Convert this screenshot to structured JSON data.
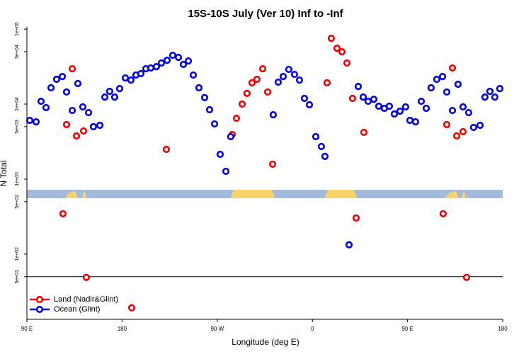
{
  "chart_data": {
    "type": "scatter",
    "title": "15S-10S July (Ver 10)   Inf to -Inf",
    "x_label": "Longitude (deg E)",
    "y_label": "N Total",
    "log_y": true,
    "xlim": [
      90,
      540
    ],
    "ylim": [
      13.5,
      107000
    ],
    "xticks": [
      {
        "value": 90,
        "label": "90 E"
      },
      {
        "value": 180,
        "label": "180"
      },
      {
        "value": 270,
        "label": "90 W"
      },
      {
        "value": 360,
        "label": "0"
      },
      {
        "value": 450,
        "label": "90 E"
      },
      {
        "value": 540,
        "label": "180"
      }
    ],
    "yticks": [
      {
        "value": 100000,
        "label": "1e+05"
      },
      {
        "value": 50000,
        "label": "5e+04"
      },
      {
        "value": 10000,
        "label": "1e+04"
      },
      {
        "value": 5000,
        "label": "5e+03"
      },
      {
        "value": 1000,
        "label": "1e+03"
      },
      {
        "value": 500,
        "label": "5e+02"
      },
      {
        "value": 100,
        "label": "1e+02"
      },
      {
        "value": 50,
        "label": "5e+01"
      }
    ],
    "reference_line": 50,
    "legend": "bottom-left",
    "series": [
      {
        "name": "Land (Nadir&Glint)",
        "color": "#ee0000",
        "x": [
          124.1,
          127.5,
          132.9,
          136.9,
          143.6,
          146.2,
          189.1,
          221.9,
          284.2,
          288.2,
          293.6,
          298.2,
          302.9,
          307.6,
          313.0,
          317.7,
          322.4,
          373.9,
          377.9,
          383.3,
          388.0,
          392.7,
          398.0,
          401.4,
          408.7,
          483.7,
          487.1,
          492.5,
          496.5,
          502.5,
          505.8
        ],
        "values": [
          345,
          5330,
          29600,
          3760,
          4380,
          48.9,
          19.2,
          2490,
          3930,
          6470,
          10000,
          13900,
          19200,
          21400,
          29600,
          14500,
          1580,
          19200,
          75400,
          55600,
          49900,
          35300,
          11900,
          303,
          4200,
          345,
          5330,
          30300,
          3760,
          4290,
          48.9
        ]
      },
      {
        "name": "Ocean (Glint)",
        "color": "#0000dd",
        "x": [
          92.7,
          98.7,
          103.4,
          108.1,
          112.8,
          118.1,
          123.5,
          127.5,
          132.9,
          138.2,
          142.9,
          148.3,
          152.9,
          159.0,
          163.7,
          168.3,
          173.0,
          177.7,
          183.1,
          188.4,
          193.1,
          197.8,
          202.5,
          207.2,
          212.5,
          217.2,
          222.6,
          227.9,
          233.3,
          238.0,
          242.7,
          247.4,
          252.7,
          258.1,
          262.8,
          267.5,
          272.8,
          278.2,
          282.8,
          323.0,
          327.7,
          332.4,
          337.7,
          343.1,
          347.8,
          352.5,
          357.2,
          363.2,
          368.5,
          371.9,
          394.7,
          403.4,
          408.1,
          412.7,
          418.1,
          422.8,
          428.1,
          432.8,
          437.5,
          442.9,
          448.2,
          452.3,
          457.6,
          463.0,
          467.7,
          472.3,
          477.7,
          483.1,
          487.1,
          492.5,
          497.8,
          502.5,
          507.8,
          512.5,
          518.6,
          523.2,
          527.9,
          532.6,
          537.3
        ],
        "values": [
          6070,
          5800,
          10900,
          8970,
          16500,
          21400,
          23300,
          14500,
          8220,
          18800,
          9170,
          7700,
          4990,
          5210,
          12400,
          14800,
          12400,
          16100,
          22300,
          20900,
          24400,
          25500,
          29600,
          30300,
          31600,
          35300,
          38400,
          44800,
          42000,
          33800,
          37600,
          24400,
          16500,
          12200,
          8410,
          5440,
          2140,
          1270,
          3680,
          7210,
          19600,
          23300,
          29000,
          24900,
          20900,
          11900,
          9790,
          3680,
          2720,
          2010,
          133,
          17200,
          12400,
          10900,
          11600,
          9370,
          8780,
          9370,
          7380,
          8050,
          9170,
          6070,
          5800,
          10900,
          8780,
          16500,
          21400,
          23300,
          14500,
          8220,
          18400,
          9170,
          7700,
          4890,
          5210,
          12400,
          14800,
          12400,
          16100
        ]
      }
    ]
  }
}
